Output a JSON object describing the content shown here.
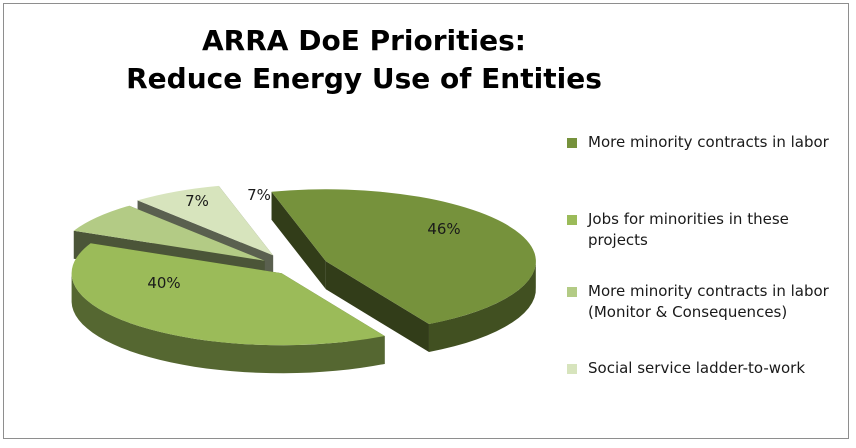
{
  "chart_data": {
    "type": "pie",
    "title_lines": [
      "ARRA DoE Priorities:",
      "Reduce Energy Use of Entities"
    ],
    "slices": [
      {
        "label": "More minority contracts in labor",
        "value": 46,
        "value_label": "46%",
        "color": "#76923c"
      },
      {
        "label": "Jobs for minorities in these projects",
        "value": 40,
        "value_label": "40%",
        "color": "#9bbb59"
      },
      {
        "label": "More minority contracts in labor\n(Monitor & Consequences)",
        "value": 7,
        "value_label": "7%",
        "color": "#b3cb85"
      },
      {
        "label": "Social service ladder-to-work",
        "value": 7,
        "value_label": "7%",
        "color": "#d7e4bd"
      }
    ],
    "legend_position": "right",
    "style": "3d-exploded-pie"
  }
}
